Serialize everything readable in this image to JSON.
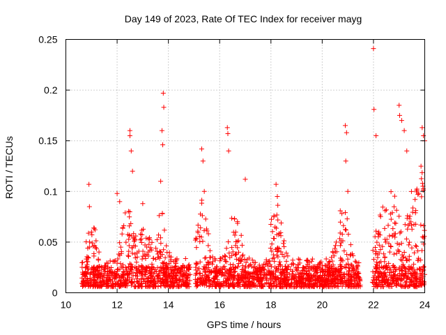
{
  "chart_data": {
    "type": "scatter",
    "title": "Day 149 of 2023, Rate Of TEC Index for receiver mayg",
    "xlabel": "GPS time / hours",
    "ylabel": "ROTI / TECUs",
    "xlim": [
      10,
      24
    ],
    "ylim": [
      0,
      0.25
    ],
    "xticks": [
      10,
      12,
      14,
      16,
      18,
      20,
      22,
      24
    ],
    "xtick_labels": [
      "10",
      "12",
      "14",
      "16",
      "18",
      "20",
      "22",
      "24"
    ],
    "yticks": [
      0,
      0.05,
      0.1,
      0.15,
      0.2,
      0.25
    ],
    "ytick_labels": [
      "0",
      "0.05",
      "0.1",
      "0.15",
      "0.2",
      "0.25"
    ],
    "grid": true,
    "marker": "+",
    "color": "#ff0000",
    "data_gaps_hours": [
      [
        14.85,
        15.05
      ],
      [
        21.5,
        21.95
      ]
    ],
    "series": [
      {
        "name": "ROTI",
        "x": [
          10.9,
          10.92,
          11.0,
          12.0,
          12.1,
          12.5,
          12.5,
          12.55,
          12.6,
          13.0,
          13.8,
          13.82,
          13.75,
          13.78,
          13.7,
          15.3,
          15.35,
          15.4,
          16.3,
          16.32,
          16.35,
          17.0,
          18.2,
          18.25,
          20.9,
          20.95,
          20.92,
          21.0,
          22.0,
          22.02,
          22.1,
          23.0,
          23.02,
          23.1,
          23.2,
          23.3,
          23.9,
          23.95,
          24.0
        ],
        "y": [
          0.107,
          0.085,
          0.06,
          0.098,
          0.09,
          0.16,
          0.155,
          0.14,
          0.12,
          0.088,
          0.197,
          0.183,
          0.16,
          0.146,
          0.11,
          0.142,
          0.13,
          0.1,
          0.163,
          0.157,
          0.14,
          0.112,
          0.107,
          0.095,
          0.165,
          0.158,
          0.13,
          0.1,
          0.241,
          0.181,
          0.155,
          0.185,
          0.175,
          0.17,
          0.16,
          0.14,
          0.163,
          0.155,
          0.15
        ]
      }
    ]
  }
}
